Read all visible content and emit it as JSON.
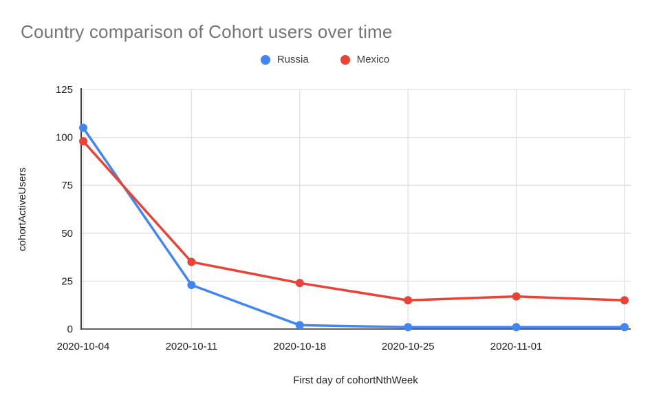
{
  "page": {
    "background": "#ffffff"
  },
  "chart_data": {
    "type": "line",
    "title": "Country comparison of Cohort users over time",
    "title_color": "#757575",
    "xlabel": "First day of cohortNthWeek",
    "ylabel": "cohortActiveUsers",
    "axis_text_color": "#212121",
    "x_tick_labels": [
      "2020-10-04",
      "2020-10-11",
      "2020-10-18",
      "2020-10-25",
      "2020-11-01",
      ""
    ],
    "y_ticks": [
      0,
      25,
      50,
      75,
      100,
      125
    ],
    "ylim": [
      0,
      125
    ],
    "grid": true,
    "gridline_color": "#e0e0e0",
    "axis_line_color": "#616161",
    "legend_position": "top-center",
    "series": [
      {
        "name": "Russia",
        "color": "#4285f4",
        "values": [
          105,
          23,
          2,
          1,
          1,
          1
        ]
      },
      {
        "name": "Mexico",
        "color": "#ea4335",
        "values": [
          98,
          35,
          24,
          15,
          17,
          15
        ]
      }
    ]
  }
}
